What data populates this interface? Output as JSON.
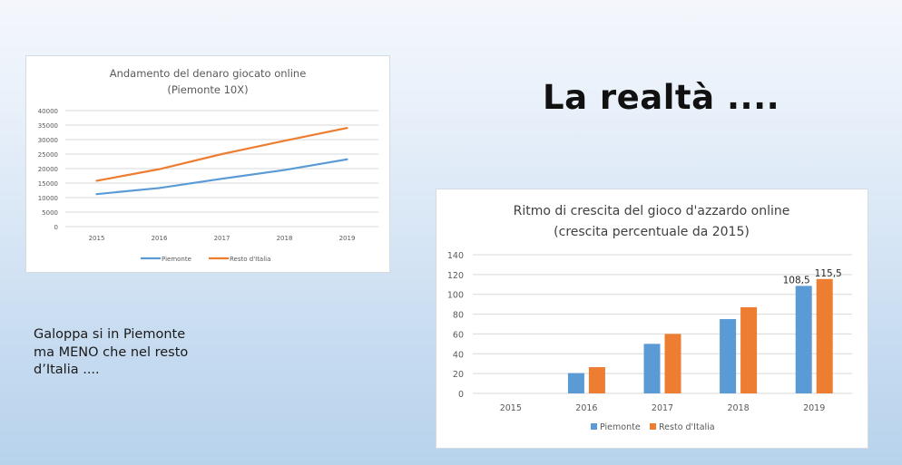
{
  "slide": {
    "title": "La realtà ....",
    "note_lines": [
      "Galoppa si in Piemonte",
      "ma MENO che nel resto",
      "d’Italia ...."
    ]
  },
  "colors": {
    "piemonte": "#5b9bd5",
    "resto": "#ed7d31",
    "grid": "#d9d9d9",
    "axis_text": "#595959"
  },
  "chart_data": [
    {
      "type": "line",
      "title": "Andamento del denaro giocato online",
      "subtitle": "(Piemonte 10X)",
      "categories": [
        "2015",
        "2016",
        "2017",
        "2018",
        "2019"
      ],
      "series": [
        {
          "name": "Piemonte",
          "values": [
            11200,
            13300,
            16500,
            19500,
            23200
          ]
        },
        {
          "name": "Resto d'Italia",
          "values": [
            15800,
            19800,
            25000,
            29600,
            34000
          ]
        }
      ],
      "yticks": [
        0,
        5000,
        10000,
        15000,
        20000,
        25000,
        30000,
        35000,
        40000
      ],
      "ylim": [
        0,
        40000
      ],
      "xlabel": "",
      "ylabel": "",
      "grid": true,
      "legend_position": "bottom"
    },
    {
      "type": "bar",
      "title": "Ritmo di crescita del gioco d'azzardo online",
      "subtitle": "(crescita percentuale da 2015)",
      "categories": [
        "2015",
        "2016",
        "2017",
        "2018",
        "2019"
      ],
      "series": [
        {
          "name": "Piemonte",
          "values": [
            0,
            20.5,
            50,
            75,
            108.5
          ]
        },
        {
          "name": "Resto d'Italia",
          "values": [
            0,
            26.5,
            60,
            87,
            115.5
          ]
        }
      ],
      "data_labels": [
        {
          "series": "Piemonte",
          "category": "2019",
          "text": "108,5"
        },
        {
          "series": "Resto d'Italia",
          "category": "2019",
          "text": "115,5"
        }
      ],
      "yticks": [
        0,
        20,
        40,
        60,
        80,
        100,
        120,
        140
      ],
      "ylim": [
        0,
        140
      ],
      "xlabel": "",
      "ylabel": "",
      "grid": true,
      "legend_position": "bottom"
    }
  ]
}
